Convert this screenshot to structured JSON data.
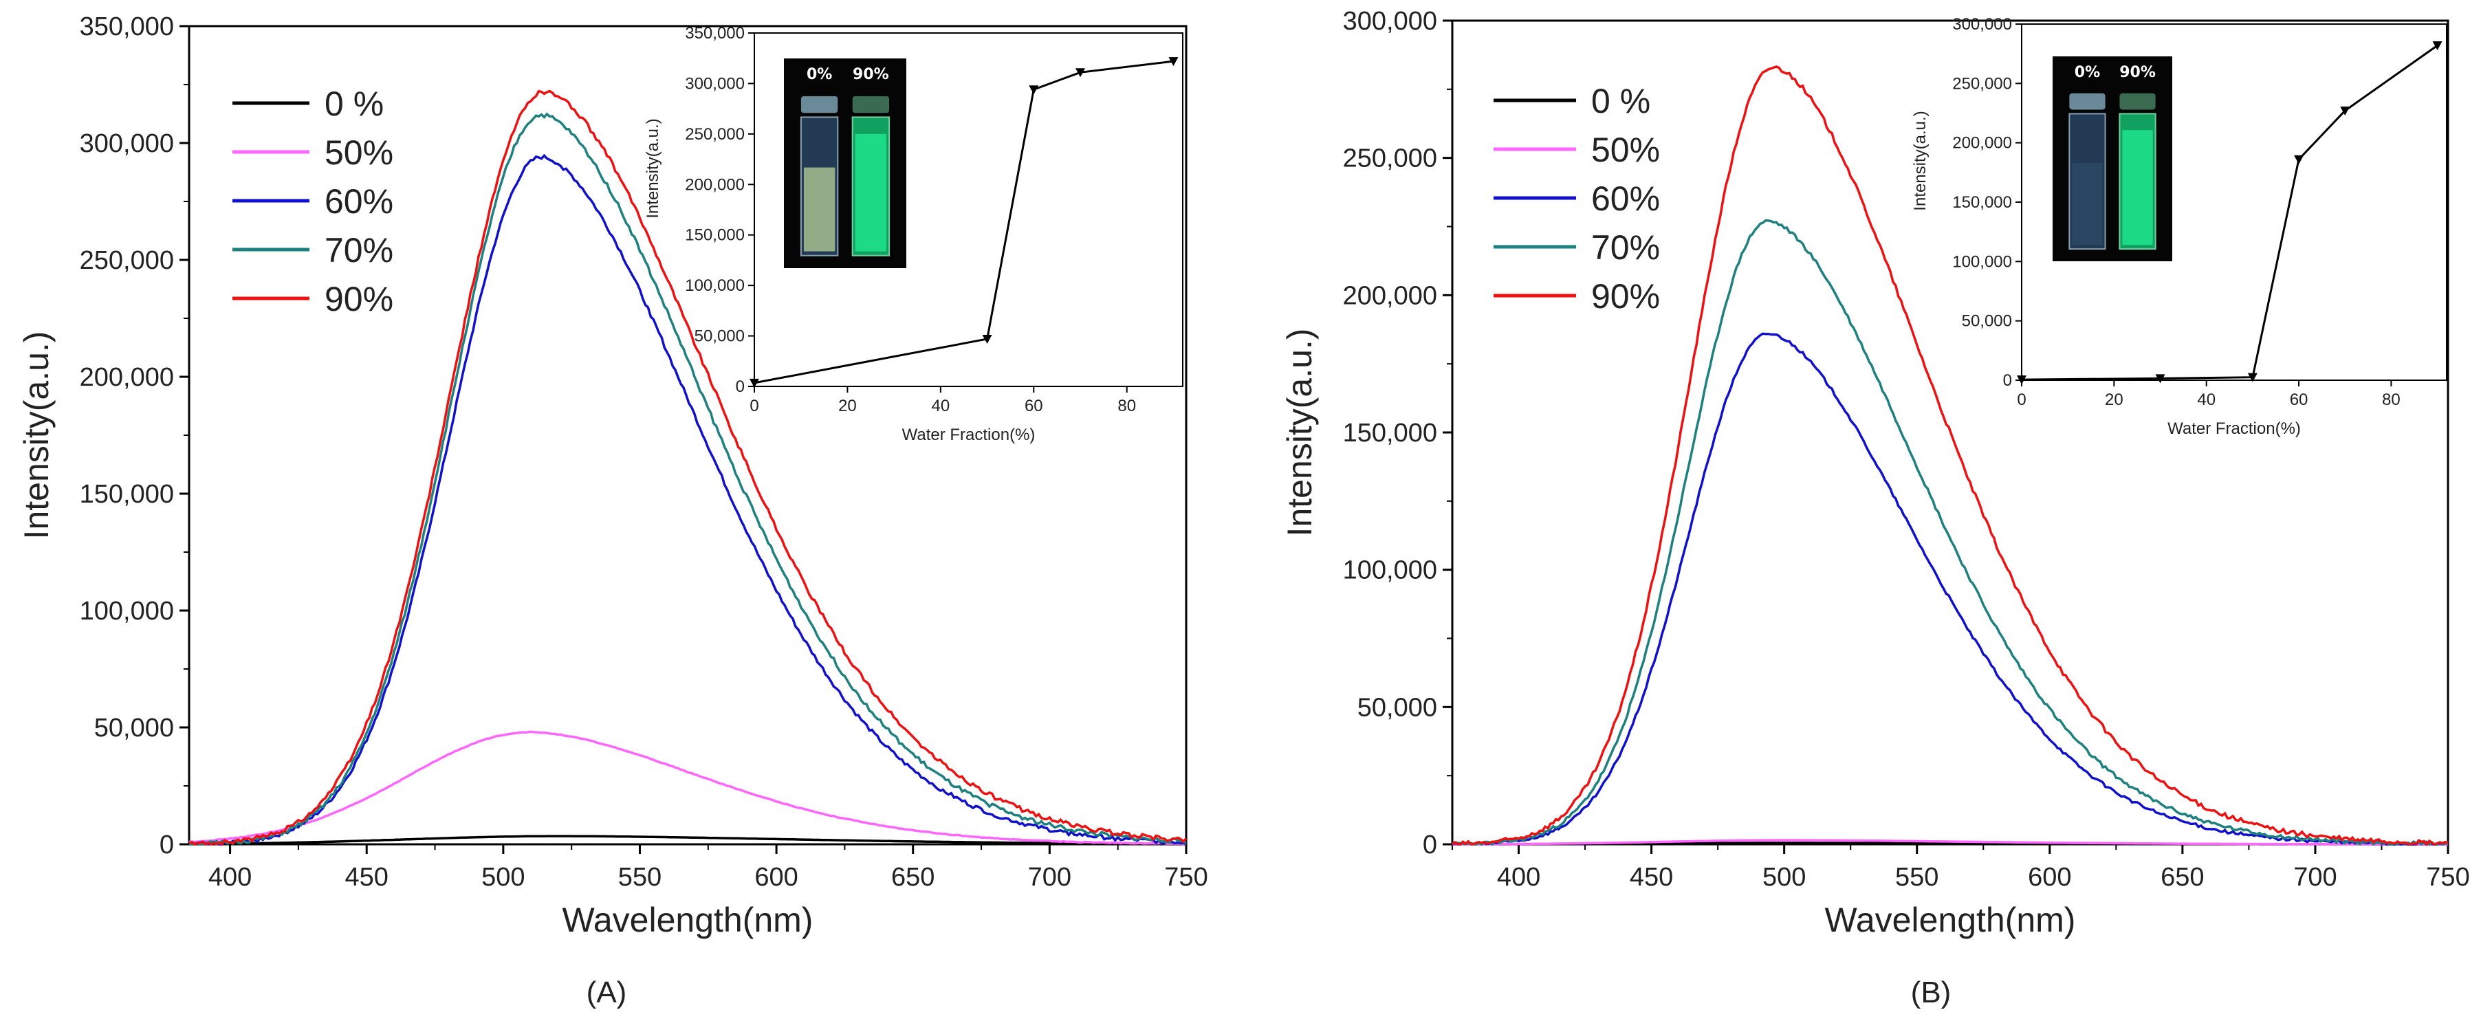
{
  "figure": {
    "panels": [
      {
        "id": "A",
        "caption": "(A)",
        "legend": [
          {
            "label": "0 %",
            "color": "#000000"
          },
          {
            "label": "50%",
            "color": "#ff66ff"
          },
          {
            "label": "60%",
            "color": "#1111cc"
          },
          {
            "label": "70%",
            "color": "#1f8080"
          },
          {
            "label": "90%",
            "color": "#ee1111"
          }
        ],
        "inset_vials": {
          "label_left": "0%",
          "label_right": "90%"
        }
      },
      {
        "id": "B",
        "caption": "(B)",
        "legend": [
          {
            "label": "0 %",
            "color": "#000000"
          },
          {
            "label": "50%",
            "color": "#ff66ff"
          },
          {
            "label": "60%",
            "color": "#1111cc"
          },
          {
            "label": "70%",
            "color": "#1f8080"
          },
          {
            "label": "90%",
            "color": "#ee1111"
          }
        ],
        "inset_vials": {
          "label_left": "0%",
          "label_right": "90%"
        }
      }
    ]
  },
  "chart_data": [
    {
      "type": "line",
      "panel": "A",
      "title": "",
      "xlabel": "Wavelength(nm)",
      "ylabel": "Intensity(a.u.)",
      "xlim": [
        385,
        750
      ],
      "ylim": [
        0,
        350000
      ],
      "xticks": [
        400,
        450,
        500,
        550,
        600,
        650,
        700,
        750
      ],
      "yticks": [
        0,
        50000,
        100000,
        150000,
        200000,
        250000,
        300000,
        350000
      ],
      "ytick_labels": [
        "0",
        "50,000",
        "100,000",
        "150,000",
        "200,000",
        "250,000",
        "300,000",
        "350,000"
      ],
      "series": [
        {
          "name": "0 %",
          "color": "#000000",
          "peak_x": 520,
          "peak_y": 3500,
          "sigma_left": 55,
          "sigma_right": 85
        },
        {
          "name": "50%",
          "color": "#ff66ff",
          "peak_x": 510,
          "peak_y": 48000,
          "sigma_left": 45,
          "sigma_right": 62
        },
        {
          "name": "60%",
          "color": "#1111cc",
          "peak_x": 514,
          "peak_y": 294000,
          "sigma_left": 33,
          "sigma_right": 58
        },
        {
          "name": "70%",
          "color": "#1f8080",
          "peak_x": 514,
          "peak_y": 312000,
          "sigma_left": 33,
          "sigma_right": 60
        },
        {
          "name": "90%",
          "color": "#ee1111",
          "peak_x": 515,
          "peak_y": 322000,
          "sigma_left": 34,
          "sigma_right": 62
        }
      ],
      "inset": {
        "type": "line",
        "xlabel": "Water Fraction(%)",
        "ylabel": "Intensity(a.u.)",
        "xlim": [
          0,
          92
        ],
        "ylim": [
          0,
          350000
        ],
        "xticks": [
          0,
          20,
          40,
          60,
          80
        ],
        "yticks": [
          0,
          50000,
          100000,
          150000,
          200000,
          250000,
          300000,
          350000
        ],
        "ytick_labels": [
          "0",
          "50,000",
          "100,000",
          "150,000",
          "200,000",
          "250,000",
          "300,000",
          "350,000"
        ],
        "x": [
          0,
          50,
          60,
          70,
          90
        ],
        "y": [
          3500,
          47000,
          294000,
          311000,
          322000
        ]
      }
    },
    {
      "type": "line",
      "panel": "B",
      "title": "",
      "xlabel": "Wavelength(nm)",
      "ylabel": "Intensity(a.u.)",
      "xlim": [
        375,
        750
      ],
      "ylim": [
        0,
        300000
      ],
      "xticks": [
        400,
        450,
        500,
        550,
        600,
        650,
        700,
        750
      ],
      "yticks": [
        0,
        50000,
        100000,
        150000,
        200000,
        250000,
        300000
      ],
      "ytick_labels": [
        "0",
        "50,000",
        "100,000",
        "150,000",
        "200,000",
        "250,000",
        "300,000"
      ],
      "series": [
        {
          "name": "0 %",
          "color": "#000000",
          "peak_x": 500,
          "peak_y": 500,
          "sigma_left": 45,
          "sigma_right": 70
        },
        {
          "name": "50%",
          "color": "#ff66ff",
          "peak_x": 500,
          "peak_y": 1500,
          "sigma_left": 45,
          "sigma_right": 70
        },
        {
          "name": "60%",
          "color": "#1111cc",
          "peak_x": 494,
          "peak_y": 186000,
          "sigma_left": 30,
          "sigma_right": 55
        },
        {
          "name": "70%",
          "color": "#1f8080",
          "peak_x": 494,
          "peak_y": 227000,
          "sigma_left": 30,
          "sigma_right": 56
        },
        {
          "name": "90%",
          "color": "#ee1111",
          "peak_x": 496,
          "peak_y": 283000,
          "sigma_left": 31,
          "sigma_right": 58
        }
      ],
      "inset": {
        "type": "line",
        "xlabel": "Water Fraction(%)",
        "ylabel": "Intensity(a.u.)",
        "xlim": [
          0,
          92
        ],
        "ylim": [
          0,
          300000
        ],
        "xticks": [
          0,
          20,
          40,
          60,
          80
        ],
        "yticks": [
          0,
          50000,
          100000,
          150000,
          200000,
          250000,
          300000
        ],
        "ytick_labels": [
          "0",
          "50,000",
          "100,000",
          "150,000",
          "200,000",
          "250,000",
          "300,000"
        ],
        "x": [
          0,
          30,
          50,
          60,
          70,
          90
        ],
        "y": [
          500,
          1500,
          2500,
          186000,
          227000,
          282000
        ]
      }
    }
  ]
}
